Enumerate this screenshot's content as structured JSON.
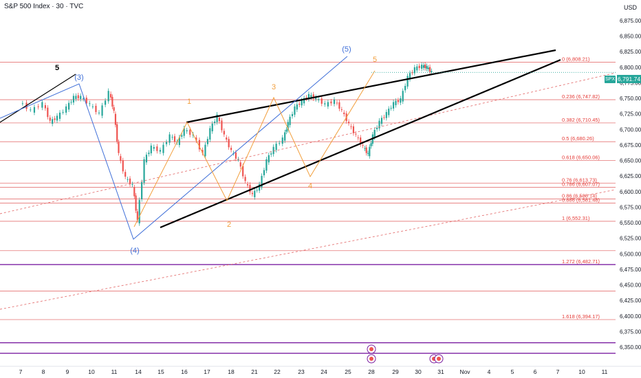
{
  "header": {
    "title": "S&P 500 Index · 30 · TVC",
    "currency": "USD"
  },
  "last_price": {
    "symbol": "SPX",
    "value": "6,791.74"
  },
  "colors": {
    "up": "#26a69a",
    "down": "#ef5350",
    "fib_line": "#e57373",
    "fib_text": "#e53935",
    "purple": "#7b1fa2",
    "orange": "#f29f3d",
    "blue": "#3f6fd8",
    "dotted": "#e57373",
    "trend": "#000000"
  },
  "chart_data": {
    "type": "candlestick",
    "x_ticks": [
      "7",
      "8",
      "9",
      "10",
      "11",
      "14",
      "15",
      "16",
      "17",
      "18",
      "21",
      "22",
      "23",
      "24",
      "25",
      "28",
      "29",
      "30",
      "31",
      "Nov",
      "4",
      "5",
      "6",
      "7",
      "10",
      "11"
    ],
    "y_ticks": [
      "6,875.00",
      "6,850.00",
      "6,825.00",
      "6,800.00",
      "6,775.00",
      "6,750.00",
      "6,725.00",
      "6,700.00",
      "6,675.00",
      "6,650.00",
      "6,625.00",
      "6,600.00",
      "6,575.00",
      "6,550.00",
      "6,525.00",
      "6,500.00",
      "6,475.00",
      "6,450.00",
      "6,425.00",
      "6,400.00",
      "6,375.00",
      "6,350.00"
    ],
    "ylim": [
      6335,
      6900
    ],
    "approx_close_path": [
      [
        7.0,
        6745
      ],
      [
        7.5,
        6730
      ],
      [
        8.0,
        6742
      ],
      [
        8.3,
        6712
      ],
      [
        8.6,
        6720
      ],
      [
        9.0,
        6735
      ],
      [
        9.3,
        6752
      ],
      [
        9.6,
        6752
      ],
      [
        10.0,
        6740
      ],
      [
        10.4,
        6725
      ],
      [
        10.8,
        6760
      ],
      [
        11.0,
        6728
      ],
      [
        11.2,
        6660
      ],
      [
        11.5,
        6622
      ],
      [
        11.8,
        6610
      ],
      [
        12.0,
        6552
      ],
      [
        12.3,
        6650
      ],
      [
        12.6,
        6672
      ],
      [
        13.0,
        6665
      ],
      [
        13.4,
        6690
      ],
      [
        13.7,
        6678
      ],
      [
        14.0,
        6700
      ],
      [
        14.4,
        6690
      ],
      [
        14.8,
        6660
      ],
      [
        15.1,
        6700
      ],
      [
        15.4,
        6722
      ],
      [
        15.7,
        6690
      ],
      [
        16.0,
        6665
      ],
      [
        16.3,
        6650
      ],
      [
        16.6,
        6615
      ],
      [
        16.9,
        6594
      ],
      [
        17.2,
        6610
      ],
      [
        17.5,
        6650
      ],
      [
        17.8,
        6670
      ],
      [
        18.2,
        6685
      ],
      [
        18.4,
        6710
      ],
      [
        18.7,
        6735
      ],
      [
        19.0,
        6745
      ],
      [
        19.3,
        6755
      ],
      [
        19.6,
        6750
      ],
      [
        20.0,
        6740
      ],
      [
        20.4,
        6746
      ],
      [
        20.7,
        6730
      ],
      [
        21.0,
        6708
      ],
      [
        21.3,
        6690
      ],
      [
        21.6,
        6672
      ],
      [
        21.8,
        6660
      ],
      [
        22.0,
        6690
      ],
      [
        22.3,
        6712
      ],
      [
        22.6,
        6726
      ],
      [
        22.9,
        6742
      ],
      [
        23.2,
        6748
      ],
      [
        23.5,
        6784
      ],
      [
        23.8,
        6798
      ],
      [
        24.1,
        6802
      ],
      [
        24.3,
        6800
      ],
      [
        24.5,
        6792
      ]
    ],
    "fib_levels": [
      {
        "label": "0 (6,808.21)",
        "value": 6808.21
      },
      {
        "label": "0.236 (6,747.82)",
        "value": 6747.82
      },
      {
        "label": "0.382 (6,710.45)",
        "value": 6710.45
      },
      {
        "label": "0.5 (6,680.26)",
        "value": 6680.26
      },
      {
        "label": "0.618 (6,650.06)",
        "value": 6650.06
      },
      {
        "label": "0.76 (6,613.73)",
        "value": 6613.73
      },
      {
        "label": "0.786 (6,607.07)",
        "value": 6607.07
      },
      {
        "label": "0.86 (6,588.14)",
        "value": 6588.14
      },
      {
        "label": "0.886 (6,581.48)",
        "value": 6581.48
      },
      {
        "label": "1 (6,552.31)",
        "value": 6552.31
      },
      {
        "label": "1.272 (6,482.71)",
        "value": 6482.71
      },
      {
        "label": "1.618 (6,394.17)",
        "value": 6394.17
      }
    ],
    "wave_labels_blue": [
      "(3)",
      "(4)",
      "(5)"
    ],
    "wave_labels_orange": [
      "1",
      "2",
      "3",
      "4",
      "5"
    ],
    "wave_label_black": "5"
  }
}
